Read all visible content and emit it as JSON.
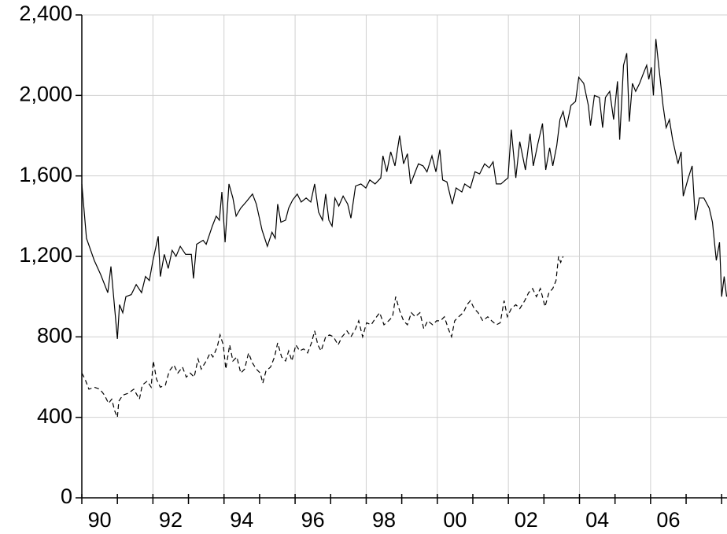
{
  "chart_data": {
    "type": "line",
    "xlim": [
      1990,
      2008.15
    ],
    "ylim": [
      0,
      2400
    ],
    "xticks": [
      {
        "value": 1990,
        "label": "90"
      },
      {
        "value": 1992,
        "label": "92"
      },
      {
        "value": 1994,
        "label": "94"
      },
      {
        "value": 1996,
        "label": "96"
      },
      {
        "value": 1998,
        "label": "98"
      },
      {
        "value": 2000,
        "label": "00"
      },
      {
        "value": 2002,
        "label": "02"
      },
      {
        "value": 2004,
        "label": "04"
      },
      {
        "value": 2006,
        "label": "06"
      }
    ],
    "yticks": [
      0,
      400,
      800,
      {
        "value": 1200,
        "label": "1,200"
      },
      {
        "value": 1600,
        "label": "1,600"
      },
      {
        "value": 2000,
        "label": "2,000"
      },
      {
        "value": 2400,
        "label": "2,400"
      }
    ],
    "grid": true,
    "series": [
      {
        "color": "#000000",
        "linestyle": "solid",
        "x": [
          1990.0,
          1990.13,
          1990.35,
          1990.53,
          1990.73,
          1990.82,
          1991.0,
          1991.06,
          1991.15,
          1991.24,
          1991.39,
          1991.53,
          1991.68,
          1991.79,
          1991.9,
          1992.0,
          1992.15,
          1992.21,
          1992.32,
          1992.43,
          1992.54,
          1992.65,
          1992.77,
          1992.92,
          1993.08,
          1993.14,
          1993.23,
          1993.41,
          1993.5,
          1993.67,
          1993.78,
          1993.87,
          1993.94,
          1994.03,
          1994.14,
          1994.25,
          1994.34,
          1994.47,
          1994.62,
          1994.8,
          1994.91,
          1995.07,
          1995.22,
          1995.35,
          1995.44,
          1995.51,
          1995.6,
          1995.73,
          1995.82,
          1995.93,
          1996.06,
          1996.17,
          1996.31,
          1996.44,
          1996.55,
          1996.66,
          1996.77,
          1996.86,
          1996.95,
          1997.04,
          1997.12,
          1997.23,
          1997.35,
          1997.48,
          1997.57,
          1997.7,
          1997.85,
          1997.99,
          1998.1,
          1998.25,
          1998.41,
          1998.47,
          1998.58,
          1998.69,
          1998.81,
          1998.94,
          1999.05,
          1999.16,
          1999.25,
          1999.38,
          1999.47,
          1999.6,
          1999.71,
          1999.85,
          1999.96,
          2000.07,
          2000.15,
          2000.27,
          2000.42,
          2000.53,
          2000.69,
          2000.77,
          2000.93,
          2001.06,
          2001.19,
          2001.33,
          2001.46,
          2001.57,
          2001.66,
          2001.79,
          2001.92,
          2001.99,
          2002.08,
          2002.21,
          2002.32,
          2002.48,
          2002.61,
          2002.7,
          2002.83,
          2002.96,
          2003.05,
          2003.16,
          2003.25,
          2003.36,
          2003.45,
          2003.54,
          2003.63,
          2003.76,
          2003.89,
          2003.98,
          2004.12,
          2004.25,
          2004.31,
          2004.42,
          2004.56,
          2004.65,
          2004.73,
          2004.85,
          2004.96,
          2005.07,
          2005.13,
          2005.24,
          2005.33,
          2005.4,
          2005.49,
          2005.58,
          2005.69,
          2005.8,
          2005.89,
          2005.95,
          2006.02,
          2006.08,
          2006.15,
          2006.24,
          2006.35,
          2006.44,
          2006.53,
          2006.62,
          2006.77,
          2006.86,
          2006.92,
          2007.06,
          2007.17,
          2007.26,
          2007.37,
          2007.5,
          2007.65,
          2007.74,
          2007.85,
          2007.94,
          2008.0,
          2008.07,
          2008.14
        ],
        "values": [
          1560,
          1290,
          1180,
          1110,
          1020,
          1150,
          790,
          960,
          920,
          1000,
          1010,
          1060,
          1020,
          1100,
          1080,
          1180,
          1300,
          1100,
          1210,
          1140,
          1230,
          1200,
          1250,
          1210,
          1210,
          1090,
          1260,
          1280,
          1260,
          1350,
          1400,
          1380,
          1520,
          1270,
          1560,
          1490,
          1400,
          1440,
          1470,
          1510,
          1460,
          1330,
          1250,
          1320,
          1290,
          1460,
          1370,
          1380,
          1440,
          1480,
          1510,
          1470,
          1490,
          1470,
          1560,
          1420,
          1380,
          1510,
          1380,
          1350,
          1490,
          1450,
          1500,
          1460,
          1390,
          1550,
          1560,
          1540,
          1580,
          1560,
          1590,
          1700,
          1620,
          1720,
          1650,
          1800,
          1660,
          1710,
          1560,
          1620,
          1660,
          1650,
          1620,
          1700,
          1620,
          1730,
          1580,
          1570,
          1460,
          1540,
          1520,
          1560,
          1540,
          1620,
          1610,
          1660,
          1640,
          1670,
          1560,
          1560,
          1580,
          1590,
          1830,
          1590,
          1770,
          1630,
          1810,
          1650,
          1760,
          1860,
          1630,
          1740,
          1650,
          1750,
          1880,
          1920,
          1840,
          1950,
          1970,
          2090,
          2060,
          1950,
          1850,
          2000,
          1990,
          1840,
          1990,
          2020,
          1880,
          2070,
          1780,
          2150,
          2210,
          1870,
          2060,
          2020,
          2060,
          2110,
          2150,
          2080,
          2140,
          2000,
          2280,
          2130,
          1950,
          1840,
          1880,
          1780,
          1660,
          1720,
          1500,
          1590,
          1650,
          1380,
          1490,
          1490,
          1440,
          1370,
          1180,
          1270,
          1000,
          1100,
          1000
        ]
      },
      {
        "color": "#000000",
        "linestyle": "dashed",
        "x": [
          1990.0,
          1990.09,
          1990.2,
          1990.35,
          1990.51,
          1990.64,
          1990.75,
          1990.84,
          1990.93,
          1991.0,
          1991.04,
          1991.15,
          1991.31,
          1991.46,
          1991.62,
          1991.7,
          1991.84,
          1991.95,
          1992.01,
          1992.1,
          1992.21,
          1992.35,
          1992.46,
          1992.59,
          1992.7,
          1992.83,
          1992.94,
          1993.05,
          1993.16,
          1993.27,
          1993.36,
          1993.5,
          1993.61,
          1993.69,
          1993.81,
          1993.89,
          1993.98,
          1994.05,
          1994.16,
          1994.25,
          1994.36,
          1994.47,
          1994.58,
          1994.69,
          1994.8,
          1994.91,
          1995.02,
          1995.09,
          1995.18,
          1995.31,
          1995.42,
          1995.51,
          1995.62,
          1995.73,
          1995.82,
          1995.91,
          1996.02,
          1996.13,
          1996.24,
          1996.35,
          1996.46,
          1996.55,
          1996.64,
          1996.73,
          1996.86,
          1996.97,
          1997.08,
          1997.21,
          1997.32,
          1997.46,
          1997.57,
          1997.7,
          1997.79,
          1997.9,
          1998.01,
          1998.14,
          1998.25,
          1998.38,
          1998.5,
          1998.63,
          1998.74,
          1998.83,
          1998.94,
          1999.05,
          1999.16,
          1999.27,
          1999.38,
          1999.51,
          1999.62,
          1999.73,
          1999.87,
          1999.98,
          2000.09,
          2000.2,
          2000.31,
          2000.4,
          2000.49,
          2000.6,
          2000.73,
          2000.84,
          2000.93,
          2001.04,
          2001.15,
          2001.28,
          2001.42,
          2001.53,
          2001.66,
          2001.77,
          2001.88,
          2001.97,
          2002.08,
          2002.21,
          2002.32,
          2002.46,
          2002.57,
          2002.68,
          2002.79,
          2002.9,
          2003.03,
          2003.14,
          2003.25,
          2003.34,
          2003.41,
          2003.47,
          2003.54
        ],
        "values": [
          620,
          590,
          540,
          550,
          540,
          510,
          470,
          490,
          430,
          400,
          480,
          510,
          520,
          540,
          490,
          560,
          580,
          550,
          680,
          590,
          550,
          560,
          630,
          660,
          620,
          650,
          600,
          620,
          600,
          690,
          640,
          680,
          720,
          700,
          750,
          810,
          760,
          640,
          760,
          680,
          700,
          620,
          640,
          720,
          670,
          640,
          620,
          570,
          630,
          650,
          700,
          770,
          700,
          680,
          730,
          680,
          760,
          730,
          740,
          720,
          770,
          830,
          760,
          730,
          800,
          810,
          800,
          760,
          800,
          830,
          800,
          840,
          880,
          800,
          870,
          860,
          890,
          920,
          860,
          880,
          900,
          1000,
          930,
          880,
          860,
          920,
          900,
          920,
          840,
          880,
          860,
          880,
          880,
          900,
          840,
          800,
          880,
          900,
          920,
          960,
          980,
          940,
          920,
          880,
          900,
          880,
          860,
          870,
          980,
          900,
          940,
          960,
          940,
          980,
          1020,
          1040,
          1000,
          1040,
          950,
          1020,
          1040,
          1080,
          1200,
          1170,
          1200
        ]
      }
    ]
  }
}
